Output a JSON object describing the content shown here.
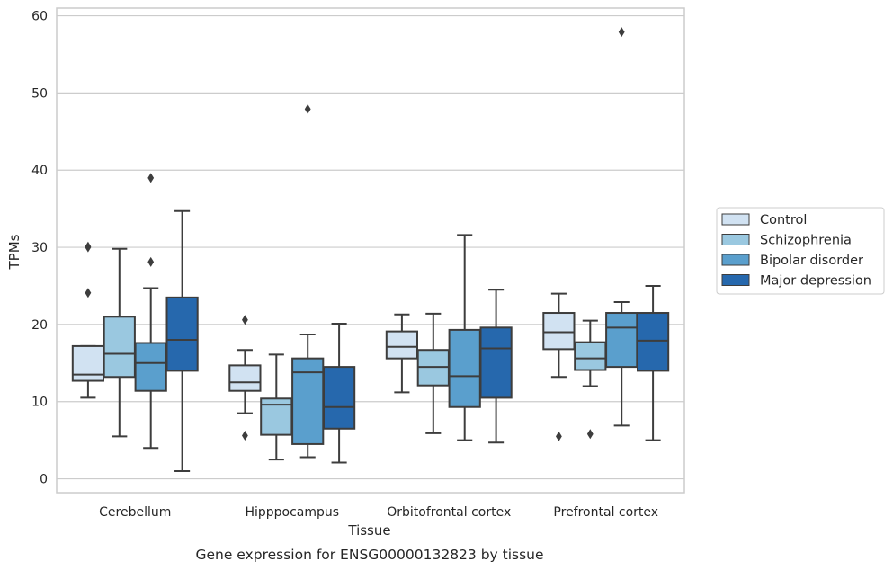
{
  "chart_data": {
    "type": "boxplot",
    "caption": "Gene expression for ENSG00000132823 by tissue",
    "xlabel": "Tissue",
    "ylabel": "TPMs",
    "ylim": [
      -1.8,
      61
    ],
    "yticks": [
      0,
      10,
      20,
      30,
      40,
      50,
      60
    ],
    "grid": "horizontal",
    "legend_position": "right",
    "categories": [
      "Cerebellum",
      "Hipppocampus",
      "Orbitofrontal cortex",
      "Prefrontal cortex"
    ],
    "series": [
      {
        "name": "Control",
        "color": "#d1e2f2",
        "boxes": [
          {
            "whislo": 10.5,
            "q1": 12.7,
            "med": 13.5,
            "q3": 17.2,
            "whishi": 17.2,
            "fliers": [
              30.1,
              30.0,
              24.1
            ]
          },
          {
            "whislo": 8.5,
            "q1": 11.4,
            "med": 12.5,
            "q3": 14.7,
            "whishi": 16.7,
            "fliers": [
              20.6,
              5.6
            ]
          },
          {
            "whislo": 11.2,
            "q1": 15.6,
            "med": 17.1,
            "q3": 19.1,
            "whishi": 21.3,
            "fliers": []
          },
          {
            "whislo": 13.2,
            "q1": 16.8,
            "med": 19.0,
            "q3": 21.5,
            "whishi": 24.0,
            "fliers": [
              5.5
            ]
          }
        ]
      },
      {
        "name": "Schizophrenia",
        "color": "#9ac8e0",
        "boxes": [
          {
            "whislo": 5.5,
            "q1": 13.2,
            "med": 16.2,
            "q3": 21.0,
            "whishi": 29.8,
            "fliers": []
          },
          {
            "whislo": 2.5,
            "q1": 5.7,
            "med": 9.6,
            "q3": 10.4,
            "whishi": 16.1,
            "fliers": []
          },
          {
            "whislo": 5.9,
            "q1": 12.1,
            "med": 14.5,
            "q3": 16.7,
            "whishi": 21.4,
            "fliers": []
          },
          {
            "whislo": 12.0,
            "q1": 14.1,
            "med": 15.6,
            "q3": 17.7,
            "whishi": 20.5,
            "fliers": [
              5.8
            ]
          }
        ]
      },
      {
        "name": "Bipolar disorder",
        "color": "#5a9fcd",
        "boxes": [
          {
            "whislo": 4.0,
            "q1": 11.4,
            "med": 15.0,
            "q3": 17.6,
            "whishi": 24.7,
            "fliers": [
              39.0,
              28.1
            ]
          },
          {
            "whislo": 2.8,
            "q1": 4.5,
            "med": 13.8,
            "q3": 15.6,
            "whishi": 18.7,
            "fliers": [
              47.9
            ]
          },
          {
            "whislo": 5.0,
            "q1": 9.3,
            "med": 13.3,
            "q3": 19.3,
            "whishi": 31.6,
            "fliers": []
          },
          {
            "whislo": 6.9,
            "q1": 14.5,
            "med": 19.6,
            "q3": 21.5,
            "whishi": 22.9,
            "fliers": [
              57.9
            ]
          }
        ]
      },
      {
        "name": "Major depression",
        "color": "#2668ad",
        "boxes": [
          {
            "whislo": 1.0,
            "q1": 14.0,
            "med": 18.0,
            "q3": 23.5,
            "whishi": 34.7,
            "fliers": []
          },
          {
            "whislo": 2.1,
            "q1": 6.5,
            "med": 9.3,
            "q3": 14.5,
            "whishi": 20.1,
            "fliers": []
          },
          {
            "whislo": 4.7,
            "q1": 10.5,
            "med": 16.9,
            "q3": 19.6,
            "whishi": 24.5,
            "fliers": []
          },
          {
            "whislo": 5.0,
            "q1": 14.0,
            "med": 17.9,
            "q3": 21.5,
            "whishi": 25.0,
            "fliers": []
          }
        ]
      }
    ]
  }
}
